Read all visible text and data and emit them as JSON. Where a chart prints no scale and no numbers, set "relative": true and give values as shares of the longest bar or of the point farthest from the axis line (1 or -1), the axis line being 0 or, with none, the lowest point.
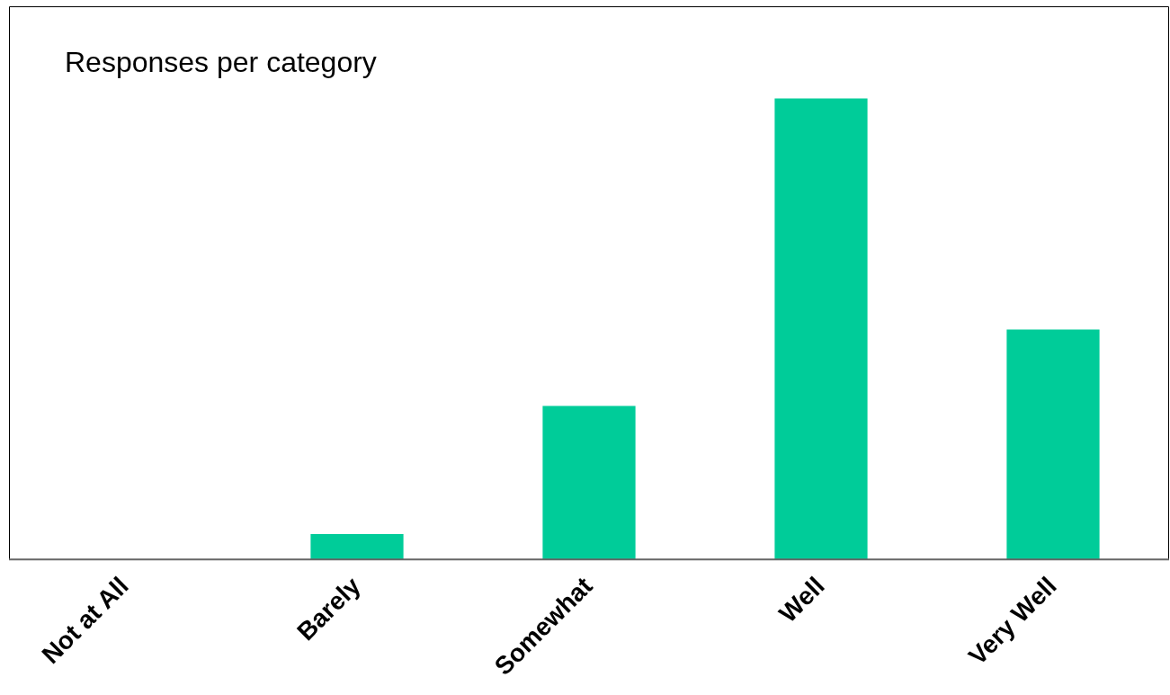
{
  "chart_data": {
    "type": "bar",
    "relative": true,
    "title": "Responses per category",
    "categories": [
      "Not at All",
      "Barely",
      "Somewhat",
      "Well",
      "Very Well"
    ],
    "values": [
      0,
      0.055,
      0.333,
      1,
      0.499
    ],
    "color": "#00cc99",
    "grid": false,
    "legend": false
  }
}
